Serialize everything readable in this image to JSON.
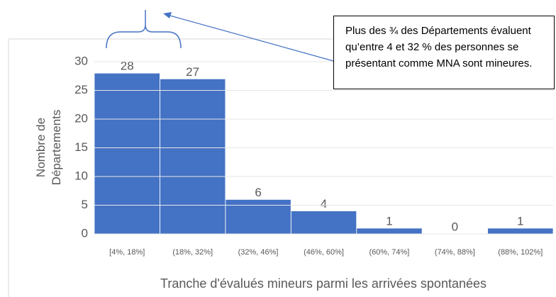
{
  "chart_data": {
    "type": "bar",
    "categories": [
      "[4%, 18%]",
      "(18%, 32%]",
      "(32%, 46%]",
      "(46%, 60%]",
      "(60%, 74%]",
      "(74%, 88%]",
      "(88%, 102%]"
    ],
    "values": [
      28,
      27,
      6,
      4,
      1,
      0,
      1
    ],
    "color": "#4472c4",
    "ylim": [
      0,
      30
    ],
    "yticks": [
      0,
      5,
      10,
      15,
      20,
      25,
      30
    ],
    "grid": true,
    "xlabel": "Tranche d'évalués mineurs parmi les arrivées spontanées",
    "ylabel": [
      "Nombre de",
      "Départements"
    ],
    "annotation": "Plus des ¾ des Départements évaluent qu’entre 4 et 32 % des personnes se présentant comme MNA sont mineures."
  }
}
